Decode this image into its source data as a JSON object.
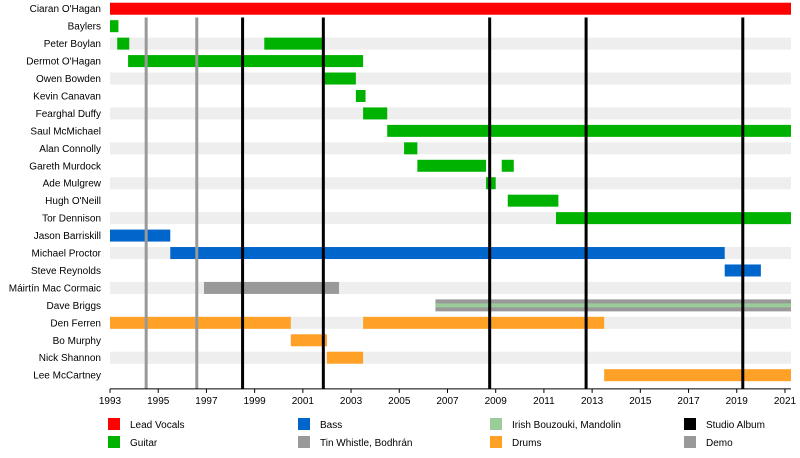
{
  "chart_data": {
    "type": "timeline",
    "x_range": [
      1993,
      2021.25
    ],
    "x_ticks": [
      "1993",
      "1995",
      "1997",
      "1999",
      "2001",
      "2003",
      "2005",
      "2007",
      "2009",
      "2011",
      "2013",
      "2015",
      "2017",
      "2019",
      "2021"
    ],
    "roles": [
      {
        "key": "lead_vocals",
        "label": "Lead Vocals",
        "color": "#ff0000"
      },
      {
        "key": "guitar",
        "label": "Guitar",
        "color": "#00b200"
      },
      {
        "key": "bass",
        "label": "Bass",
        "color": "#0066cc"
      },
      {
        "key": "tin_whistle",
        "label": "Tin Whistle, Bodhrán",
        "color": "#999999"
      },
      {
        "key": "bouzouki",
        "label": "Irish Bouzouki, Mandolin",
        "color": "#99cc99"
      },
      {
        "key": "drums",
        "label": "Drums",
        "color": "#ffa126"
      },
      {
        "key": "studio_album",
        "label": "Studio Album",
        "color": "#000000"
      },
      {
        "key": "demo",
        "label": "Demo",
        "color": "#999999"
      }
    ],
    "members": [
      {
        "name": "Ciaran O'Hagan",
        "spans": [
          {
            "role": "lead_vocals",
            "start": 1993.0,
            "end": 2021.25
          }
        ]
      },
      {
        "name": "Baylers",
        "spans": [
          {
            "role": "guitar",
            "start": 1993.0,
            "end": 1993.35
          }
        ]
      },
      {
        "name": "Peter Boylan",
        "spans": [
          {
            "role": "guitar",
            "start": 1993.3,
            "end": 1993.8
          },
          {
            "role": "guitar",
            "start": 1999.4,
            "end": 2001.9
          }
        ]
      },
      {
        "name": "Dermot O'Hagan",
        "spans": [
          {
            "role": "guitar",
            "start": 1993.75,
            "end": 2003.5
          }
        ]
      },
      {
        "name": "Owen Bowden",
        "spans": [
          {
            "role": "guitar",
            "start": 2001.9,
            "end": 2003.2
          }
        ]
      },
      {
        "name": "Kevin Canavan",
        "spans": [
          {
            "role": "guitar",
            "start": 2003.2,
            "end": 2003.6
          }
        ]
      },
      {
        "name": "Fearghal Duffy",
        "spans": [
          {
            "role": "guitar",
            "start": 2003.5,
            "end": 2004.5
          }
        ]
      },
      {
        "name": "Saul McMichael",
        "spans": [
          {
            "role": "guitar",
            "start": 2004.5,
            "end": 2021.25
          }
        ]
      },
      {
        "name": "Alan Connolly",
        "spans": [
          {
            "role": "guitar",
            "start": 2005.2,
            "end": 2005.75
          }
        ]
      },
      {
        "name": "Gareth Murdock",
        "spans": [
          {
            "role": "guitar",
            "start": 2005.75,
            "end": 2008.6
          },
          {
            "role": "guitar",
            "start": 2009.25,
            "end": 2009.75
          }
        ]
      },
      {
        "name": "Ade Mulgrew",
        "spans": [
          {
            "role": "guitar",
            "start": 2008.6,
            "end": 2009.0
          }
        ]
      },
      {
        "name": "Hugh O'Neill",
        "spans": [
          {
            "role": "guitar",
            "start": 2009.5,
            "end": 2011.6
          }
        ]
      },
      {
        "name": "Tor Dennison",
        "spans": [
          {
            "role": "guitar",
            "start": 2011.5,
            "end": 2021.25
          }
        ]
      },
      {
        "name": "Jason Barriskill",
        "spans": [
          {
            "role": "bass",
            "start": 1993.0,
            "end": 1995.5
          }
        ]
      },
      {
        "name": "Michael Proctor",
        "spans": [
          {
            "role": "bass",
            "start": 1995.5,
            "end": 2018.5
          }
        ]
      },
      {
        "name": "Steve Reynolds",
        "spans": [
          {
            "role": "bass",
            "start": 2018.5,
            "end": 2020.0
          }
        ]
      },
      {
        "name": "Máirtín Mac Cormaic",
        "spans": [
          {
            "role": "tin_whistle",
            "start": 1996.9,
            "end": 2002.5
          }
        ]
      },
      {
        "name": "Dave Briggs",
        "spans": [
          {
            "role": "tin_whistle",
            "start": 2006.5,
            "end": 2021.25
          },
          {
            "role": "bouzouki",
            "start": 2006.5,
            "end": 2021.25,
            "thin": true
          }
        ]
      },
      {
        "name": "Den Ferren",
        "spans": [
          {
            "role": "drums",
            "start": 1993.0,
            "end": 2000.5
          },
          {
            "role": "drums",
            "start": 2003.5,
            "end": 2013.5
          }
        ]
      },
      {
        "name": "Bo Murphy",
        "spans": [
          {
            "role": "drums",
            "start": 2000.5,
            "end": 2002.0
          }
        ]
      },
      {
        "name": "Nick Shannon",
        "spans": [
          {
            "role": "drums",
            "start": 2002.0,
            "end": 2003.5
          }
        ]
      },
      {
        "name": "Lee McCartney",
        "spans": [
          {
            "role": "drums",
            "start": 2013.5,
            "end": 2021.25
          }
        ]
      }
    ],
    "event_lines": [
      {
        "role": "demo",
        "x": 1994.5
      },
      {
        "role": "demo",
        "x": 1996.6
      },
      {
        "role": "studio_album",
        "x": 1998.5
      },
      {
        "role": "studio_album",
        "x": 2001.85
      },
      {
        "role": "studio_album",
        "x": 2008.75
      },
      {
        "role": "studio_album",
        "x": 2012.75
      },
      {
        "role": "studio_album",
        "x": 2019.25
      }
    ],
    "legend": {
      "placement": "bottom",
      "columns": 4
    }
  }
}
